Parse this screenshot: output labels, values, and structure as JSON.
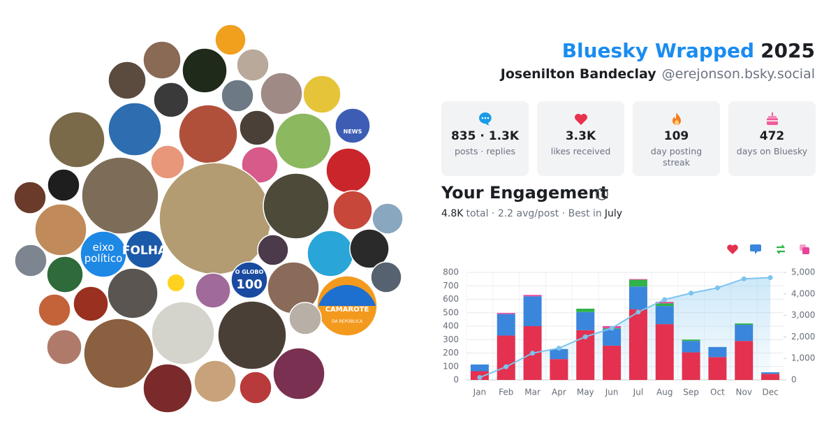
{
  "header": {
    "title": "Bluesky Wrapped",
    "year": "2025",
    "name": "Josenilton Bandeclay",
    "handle": "@erejonson.bsky.social"
  },
  "stats": [
    {
      "value": "835 · 1.3K",
      "label": "posts · replies"
    },
    {
      "value": "3.3K",
      "label": "likes received"
    },
    {
      "value": "109",
      "label": "day posting streak"
    },
    {
      "value": "472",
      "label": "days on Bluesky"
    }
  ],
  "avatar_labels": [
    "eixo",
    "político",
    "FOLHA",
    "O GLOBO",
    "100",
    "CAMAROTE",
    "DA REPÚBLICA",
    "NEWS"
  ],
  "chart_data": {
    "type": "bar",
    "stacked": true,
    "title": "Your Engagement",
    "subtitle": [
      "4.8K",
      "total · 2.2 avg/post · Best in",
      "July"
    ],
    "categories": [
      "Jan",
      "Feb",
      "Mar",
      "Apr",
      "May",
      "Jun",
      "Jul",
      "Aug",
      "Sep",
      "Oct",
      "Nov",
      "Dec"
    ],
    "series": [
      {
        "color": "#e3314f",
        "values": [
          65,
          330,
          400,
          155,
          370,
          255,
          525,
          415,
          205,
          170,
          290,
          45
        ]
      },
      {
        "color": "#3a86dc",
        "values": [
          50,
          160,
          222,
          75,
          135,
          125,
          170,
          135,
          85,
          75,
          120,
          12
        ]
      },
      {
        "color": "#2fb34a",
        "values": [
          0,
          0,
          0,
          0,
          25,
          5,
          50,
          20,
          10,
          0,
          10,
          0
        ]
      },
      {
        "color": "#e8439a",
        "values": [
          0,
          8,
          10,
          0,
          0,
          15,
          5,
          10,
          0,
          0,
          0,
          0
        ]
      },
      {
        "type": "line",
        "axis": "y2",
        "color": "#7cc3ee",
        "values": [
          115,
          613,
          1245,
          1475,
          2005,
          2405,
          3155,
          3735,
          4035,
          4280,
          4700,
          4757
        ]
      }
    ],
    "ylim": [
      0,
      800
    ],
    "yticks": [
      0,
      100,
      200,
      300,
      400,
      500,
      600,
      700,
      800
    ],
    "y2lim": [
      0,
      5000
    ],
    "y2ticks": [
      0,
      {
        "value": 1000,
        "label": "1,000"
      },
      {
        "value": 2000,
        "label": "2,000"
      },
      {
        "value": 3000,
        "label": "3,000"
      },
      {
        "value": 4000,
        "label": "4,000"
      },
      {
        "value": 5000,
        "label": "5,000"
      }
    ],
    "grid": true
  }
}
